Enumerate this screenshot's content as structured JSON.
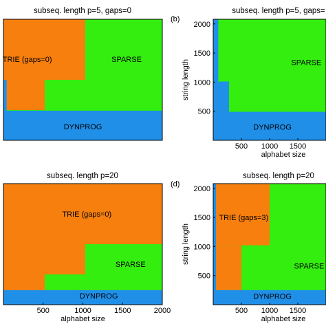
{
  "colors": {
    "TRIE": "#F77F0E",
    "SPARSE": "#33EE0E",
    "DYNPROG": "#1F8FE8"
  },
  "chart_data": [
    {
      "type": "heatmap",
      "panel_label": "",
      "title": "subseq. length p=5, gaps=0",
      "xlabel": "",
      "ylabel": "",
      "xticks": [],
      "yticks": [],
      "xlim": [
        1,
        2000
      ],
      "ylim": [
        1,
        2000
      ],
      "region_labels": [
        {
          "text": "TRIE  (gaps=0)",
          "x": 300,
          "y": 1340
        },
        {
          "text": "SPARSE",
          "x": 1550,
          "y": 1340
        },
        {
          "text": "DYNPROG",
          "x": 1000,
          "y": 230
        }
      ],
      "regions": [
        {
          "class": "SPARSE",
          "x": [
            0,
            2000
          ],
          "y": [
            0,
            2000
          ]
        },
        {
          "class": "TRIE",
          "x": [
            0,
            1030
          ],
          "y": [
            1000,
            2000
          ]
        },
        {
          "class": "TRIE",
          "x": [
            0,
            520
          ],
          "y": [
            500,
            1000
          ]
        },
        {
          "class": "DYNPROG",
          "x": [
            0,
            2000
          ],
          "y": [
            0,
            490
          ]
        },
        {
          "class": "DYNPROG",
          "x": [
            0,
            40
          ],
          "y": [
            490,
            1000
          ]
        }
      ]
    },
    {
      "type": "heatmap",
      "panel_label": "(b)",
      "title": "subseq. length p=5, gaps=",
      "xlabel": "alphabet size",
      "ylabel": "string length",
      "xticks": [
        500,
        1000,
        1500
      ],
      "yticks": [
        500,
        1000,
        1500,
        2000
      ],
      "xlim": [
        1,
        2000
      ],
      "ylim": [
        1,
        2080
      ],
      "region_labels": [
        {
          "text": "SPARSE",
          "x": 1650,
          "y": 1340
        },
        {
          "text": "DYNPROG",
          "x": 1050,
          "y": 230
        }
      ],
      "regions": [
        {
          "class": "SPARSE",
          "x": [
            0,
            2000
          ],
          "y": [
            0,
            2080
          ]
        },
        {
          "class": "DYNPROG",
          "x": [
            0,
            2000
          ],
          "y": [
            0,
            490
          ]
        },
        {
          "class": "DYNPROG",
          "x": [
            0,
            280
          ],
          "y": [
            490,
            1010
          ]
        },
        {
          "class": "DYNPROG",
          "x": [
            0,
            90
          ],
          "y": [
            1010,
            2080
          ]
        }
      ]
    },
    {
      "type": "heatmap",
      "panel_label": "",
      "title": "subseq. length p=20",
      "xlabel": "alphabet size",
      "ylabel": "",
      "xticks": [
        500,
        1000,
        1500,
        2000
      ],
      "yticks": [],
      "xlim": [
        1,
        2000
      ],
      "ylim": [
        1,
        2000
      ],
      "region_labels": [
        {
          "text": "TRIE (gaps=0)",
          "x": 1050,
          "y": 1500
        },
        {
          "text": "SPARSE",
          "x": 1600,
          "y": 670
        },
        {
          "text": "DYNPROG",
          "x": 1200,
          "y": 150
        }
      ],
      "regions": [
        {
          "class": "TRIE",
          "x": [
            0,
            2000
          ],
          "y": [
            0,
            2000
          ]
        },
        {
          "class": "SPARSE",
          "x": [
            1030,
            2000
          ],
          "y": [
            240,
            1000
          ]
        },
        {
          "class": "SPARSE",
          "x": [
            520,
            1030
          ],
          "y": [
            240,
            500
          ]
        },
        {
          "class": "DYNPROG",
          "x": [
            0,
            2000
          ],
          "y": [
            0,
            240
          ]
        }
      ]
    },
    {
      "type": "heatmap",
      "panel_label": "(d)",
      "title": "subseq. length p=20",
      "xlabel": "alphabet size",
      "ylabel": "string length",
      "xticks": [
        500,
        1000,
        1500
      ],
      "yticks": [
        500,
        1000,
        1500,
        2000
      ],
      "xlim": [
        1,
        2000
      ],
      "ylim": [
        1,
        2080
      ],
      "region_labels": [
        {
          "text": "TRIE (gaps=3)",
          "x": 540,
          "y": 1500
        },
        {
          "text": "SPARSE",
          "x": 1700,
          "y": 670
        },
        {
          "text": "DYNPROG",
          "x": 1050,
          "y": 150
        }
      ],
      "regions": [
        {
          "class": "SPARSE",
          "x": [
            0,
            2000
          ],
          "y": [
            0,
            2080
          ]
        },
        {
          "class": "TRIE",
          "x": [
            0,
            1000
          ],
          "y": [
            1020,
            2080
          ]
        },
        {
          "class": "TRIE",
          "x": [
            0,
            500
          ],
          "y": [
            250,
            1020
          ]
        },
        {
          "class": "DYNPROG",
          "x": [
            0,
            2000
          ],
          "y": [
            0,
            250
          ]
        },
        {
          "class": "DYNPROG",
          "x": [
            0,
            50
          ],
          "y": [
            250,
            2080
          ]
        }
      ]
    }
  ]
}
